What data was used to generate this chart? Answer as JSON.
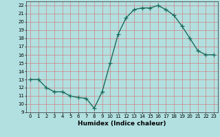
{
  "x": [
    0,
    1,
    2,
    3,
    4,
    5,
    6,
    7,
    8,
    9,
    10,
    11,
    12,
    13,
    14,
    15,
    16,
    17,
    18,
    19,
    20,
    21,
    22,
    23
  ],
  "y": [
    13,
    13,
    12,
    11.5,
    11.5,
    11,
    10.8,
    10.7,
    9.5,
    11.5,
    15,
    18.5,
    20.5,
    21.5,
    21.7,
    21.7,
    22,
    21.5,
    20.8,
    19.5,
    18,
    16.5,
    16,
    16
  ],
  "line_color": "#1a6b5a",
  "marker": "+",
  "bg_color": "#b2e0e0",
  "grid_color": "#d08080",
  "xlabel": "Humidex (Indice chaleur)",
  "ylim": [
    9,
    22.5
  ],
  "xlim": [
    -0.5,
    23.5
  ],
  "yticks": [
    9,
    10,
    11,
    12,
    13,
    14,
    15,
    16,
    17,
    18,
    19,
    20,
    21,
    22
  ],
  "xticks": [
    0,
    1,
    2,
    3,
    4,
    5,
    6,
    7,
    8,
    9,
    10,
    11,
    12,
    13,
    14,
    15,
    16,
    17,
    18,
    19,
    20,
    21,
    22,
    23
  ]
}
